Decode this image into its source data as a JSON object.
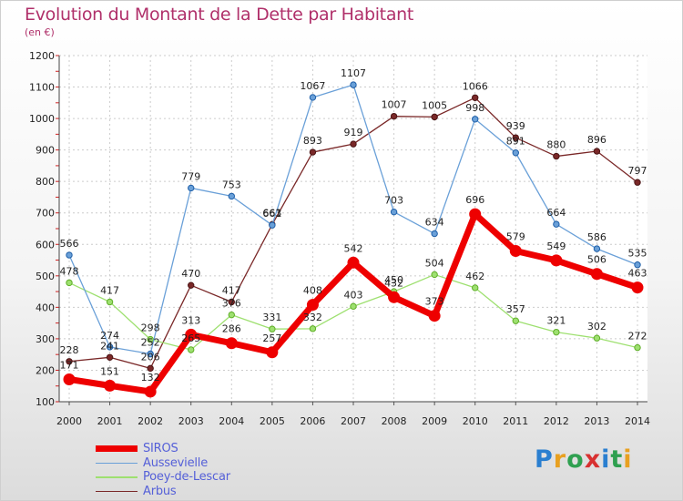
{
  "header": {
    "title": "Evolution du Montant de la Dette par Habitant",
    "subtitle": "(en €)"
  },
  "logo": {
    "text": "Proxiti"
  },
  "chart_data": {
    "type": "line",
    "title": "Evolution du Montant de la Dette par Habitant",
    "subtitle": "(en €)",
    "xlabel": "",
    "ylabel": "",
    "x": [
      2000,
      2001,
      2002,
      2003,
      2004,
      2005,
      2006,
      2007,
      2008,
      2009,
      2010,
      2011,
      2012,
      2013,
      2014
    ],
    "ylim": [
      100,
      1200
    ],
    "yticks": [
      100,
      200,
      300,
      400,
      500,
      600,
      700,
      800,
      900,
      1000,
      1100,
      1200
    ],
    "grid": true,
    "legend_position": "bottom-left",
    "series": [
      {
        "name": "SIROS",
        "color": "#ee0000",
        "values": [
          171,
          151,
          132,
          313,
          286,
          257,
          408,
          542,
          432,
          373,
          696,
          579,
          549,
          506,
          463
        ]
      },
      {
        "name": "Aussevielle",
        "color": "#6aa0d8",
        "values": [
          566,
          274,
          252,
          779,
          753,
          661,
          1067,
          1107,
          703,
          634,
          998,
          891,
          664,
          586,
          535
        ]
      },
      {
        "name": "Poey-de-Lescar",
        "color": "#9ee070",
        "values": [
          478,
          417,
          298,
          265,
          376,
          331,
          332,
          403,
          450,
          504,
          462,
          357,
          321,
          302,
          272
        ]
      },
      {
        "name": "Arbus",
        "color": "#7a2828",
        "values": [
          228,
          241,
          206,
          470,
          417,
          663,
          893,
          919,
          1007,
          1005,
          1066,
          939,
          880,
          896,
          797
        ]
      }
    ]
  }
}
